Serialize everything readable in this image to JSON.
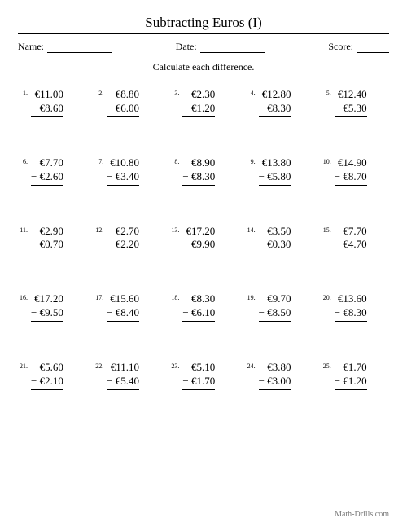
{
  "title": "Subtracting Euros (I)",
  "labels": {
    "name": "Name:",
    "date": "Date:",
    "score": "Score:"
  },
  "instruction": "Calculate each difference.",
  "footer": "Math-Drills.com",
  "currency": "€",
  "minus": "−",
  "problems": [
    {
      "n": "1.",
      "a": "11.00",
      "b": "8.60"
    },
    {
      "n": "2.",
      "a": "8.80",
      "b": "6.00"
    },
    {
      "n": "3.",
      "a": "2.30",
      "b": "1.20"
    },
    {
      "n": "4.",
      "a": "12.80",
      "b": "8.30"
    },
    {
      "n": "5.",
      "a": "12.40",
      "b": "5.30"
    },
    {
      "n": "6.",
      "a": "7.70",
      "b": "2.60"
    },
    {
      "n": "7.",
      "a": "10.80",
      "b": "3.40"
    },
    {
      "n": "8.",
      "a": "8.90",
      "b": "8.30"
    },
    {
      "n": "9.",
      "a": "13.80",
      "b": "5.80"
    },
    {
      "n": "10.",
      "a": "14.90",
      "b": "8.70"
    },
    {
      "n": "11.",
      "a": "2.90",
      "b": "0.70"
    },
    {
      "n": "12.",
      "a": "2.70",
      "b": "2.20"
    },
    {
      "n": "13.",
      "a": "17.20",
      "b": "9.90"
    },
    {
      "n": "14.",
      "a": "3.50",
      "b": "0.30"
    },
    {
      "n": "15.",
      "a": "7.70",
      "b": "4.70"
    },
    {
      "n": "16.",
      "a": "17.20",
      "b": "9.50"
    },
    {
      "n": "17.",
      "a": "15.60",
      "b": "8.40"
    },
    {
      "n": "18.",
      "a": "8.30",
      "b": "6.10"
    },
    {
      "n": "19.",
      "a": "9.70",
      "b": "8.50"
    },
    {
      "n": "20.",
      "a": "13.60",
      "b": "8.30"
    },
    {
      "n": "21.",
      "a": "5.60",
      "b": "2.10"
    },
    {
      "n": "22.",
      "a": "11.10",
      "b": "5.40"
    },
    {
      "n": "23.",
      "a": "5.10",
      "b": "1.70"
    },
    {
      "n": "24.",
      "a": "3.80",
      "b": "3.00"
    },
    {
      "n": "25.",
      "a": "1.70",
      "b": "1.20"
    }
  ]
}
